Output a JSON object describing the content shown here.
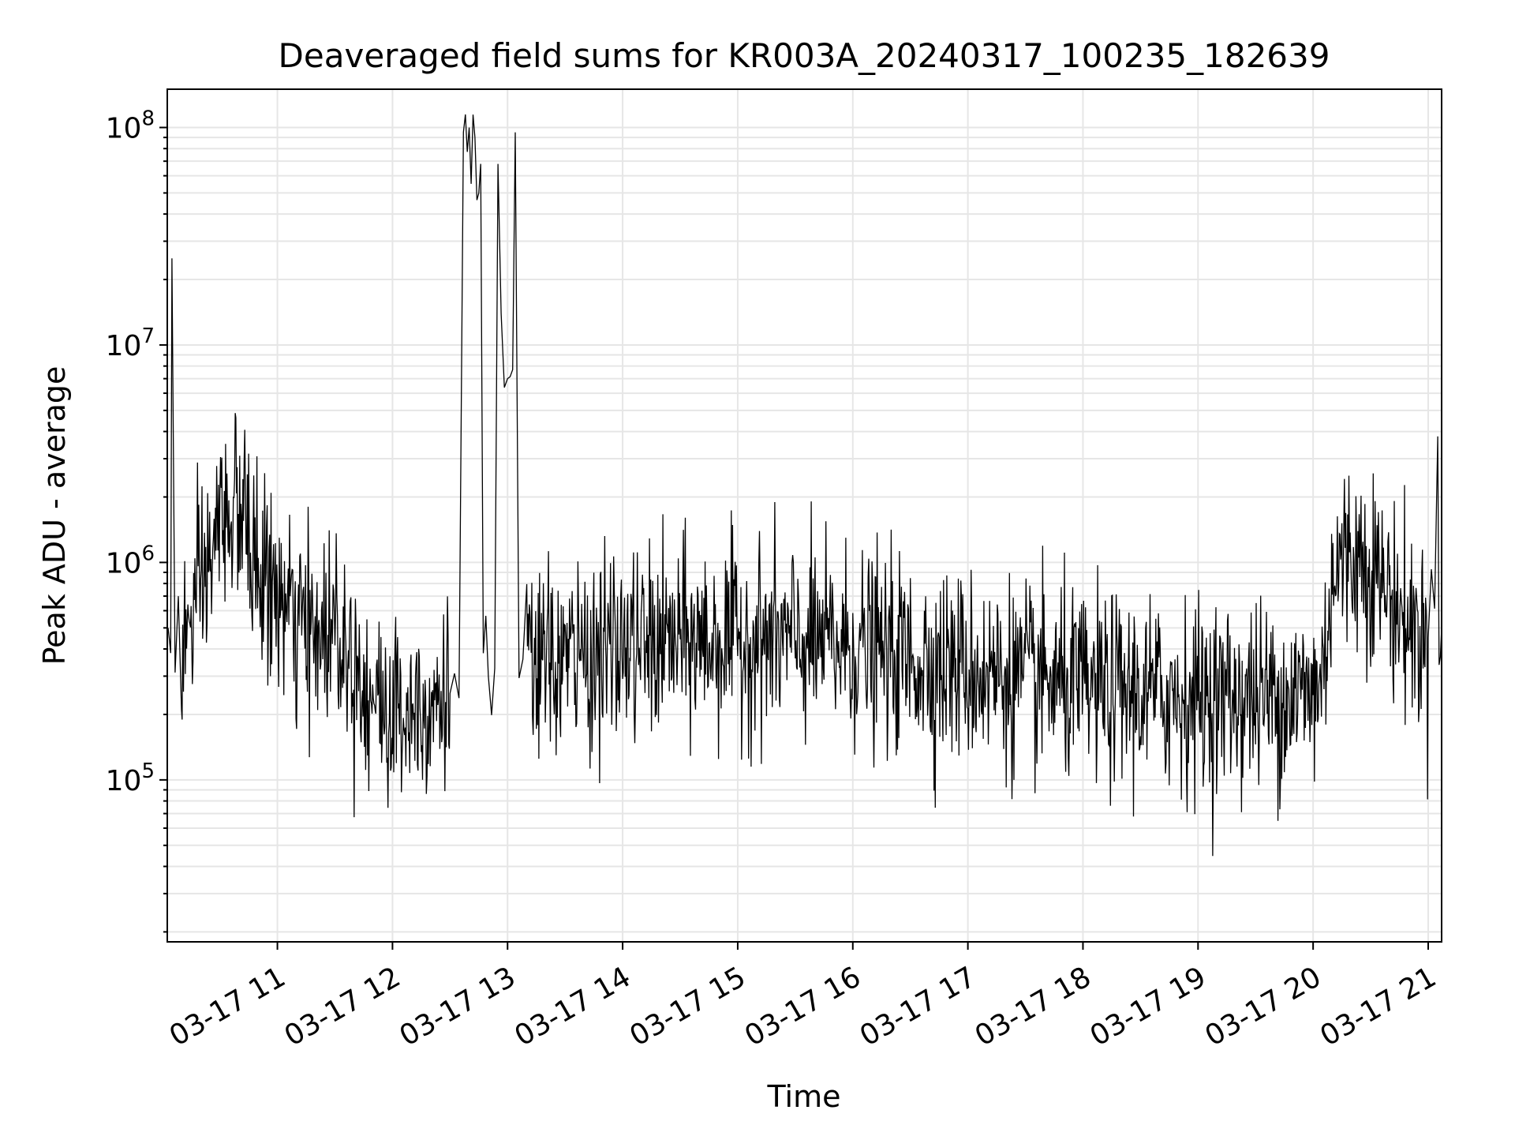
{
  "chart_data": {
    "type": "line",
    "title": "Deaveraged field sums for KR003A_20240317_100235_182639",
    "xlabel": "Time",
    "ylabel": "Peak ADU - average",
    "yscale": "log",
    "ylim": [
      18000,
      150000000
    ],
    "xlim": [
      "03-17 10:02:35",
      "03-17 21:07:00"
    ],
    "grid": true,
    "legend": "none",
    "line_color": "#000000",
    "grid_color": "#e6e6e6",
    "x_ticks": [
      {
        "t": "03-17 11:00",
        "label": "03-17 11"
      },
      {
        "t": "03-17 12:00",
        "label": "03-17 12"
      },
      {
        "t": "03-17 13:00",
        "label": "03-17 13"
      },
      {
        "t": "03-17 14:00",
        "label": "03-17 14"
      },
      {
        "t": "03-17 15:00",
        "label": "03-17 15"
      },
      {
        "t": "03-17 16:00",
        "label": "03-17 16"
      },
      {
        "t": "03-17 17:00",
        "label": "03-17 17"
      },
      {
        "t": "03-17 18:00",
        "label": "03-17 18"
      },
      {
        "t": "03-17 19:00",
        "label": "03-17 19"
      },
      {
        "t": "03-17 20:00",
        "label": "03-17 20"
      },
      {
        "t": "03-17 21:00",
        "label": "03-17 21"
      }
    ],
    "y_ticks": [
      {
        "value": 100000,
        "label": "10",
        "exp": "5"
      },
      {
        "value": 1000000,
        "label": "10",
        "exp": "6"
      },
      {
        "value": 10000000,
        "label": "10",
        "exp": "7"
      },
      {
        "value": 100000000,
        "label": "10",
        "exp": "8"
      }
    ],
    "series": [
      {
        "points": [
          [
            "03-17 10:03",
            500000
          ],
          [
            "03-17 10:05",
            25000000
          ],
          [
            "03-17 10:10",
            400000
          ],
          [
            "03-17 10:20",
            700000
          ],
          [
            "03-17 10:30",
            1500000
          ],
          [
            "03-17 10:35",
            1800000
          ],
          [
            "03-17 10:40",
            1700000
          ],
          [
            "03-17 10:45",
            1300000
          ],
          [
            "03-17 10:50",
            900000
          ],
          [
            "03-17 11:00",
            700000
          ],
          [
            "03-17 11:10",
            500000
          ],
          [
            "03-17 11:20",
            450000
          ],
          [
            "03-17 11:30",
            550000
          ],
          [
            "03-17 11:40",
            350000
          ],
          [
            "03-17 11:50",
            230000
          ],
          [
            "03-17 12:00",
            200000
          ],
          [
            "03-17 12:15",
            230000
          ],
          [
            "03-17 12:30",
            250000
          ],
          [
            "03-17 12:37",
            95000000
          ],
          [
            "03-17 12:40",
            100000000
          ],
          [
            "03-17 12:43",
            90000000
          ],
          [
            "03-17 12:46",
            68000000
          ],
          [
            "03-17 12:50",
            300000
          ],
          [
            "03-17 12:55",
            68000000
          ],
          [
            "03-17 13:00",
            7000000
          ],
          [
            "03-17 13:04",
            95000000
          ],
          [
            "03-17 13:10",
            320000
          ],
          [
            "03-17 13:30",
            360000
          ],
          [
            "03-17 14:00",
            400000
          ],
          [
            "03-17 14:30",
            430000
          ],
          [
            "03-17 15:00",
            440000
          ],
          [
            "03-17 15:30",
            430000
          ],
          [
            "03-17 16:00",
            410000
          ],
          [
            "03-17 16:30",
            360000
          ],
          [
            "03-17 17:00",
            320000
          ],
          [
            "03-17 17:30",
            290000
          ],
          [
            "03-17 18:00",
            260000
          ],
          [
            "03-17 18:30",
            250000
          ],
          [
            "03-17 19:00",
            240000
          ],
          [
            "03-17 19:30",
            240000
          ],
          [
            "03-17 20:00",
            250000
          ],
          [
            "03-17 20:05",
            300000
          ],
          [
            "03-17 20:10",
            900000
          ],
          [
            "03-17 20:20",
            1100000
          ],
          [
            "03-17 20:30",
            1000000
          ],
          [
            "03-17 20:40",
            700000
          ],
          [
            "03-17 20:50",
            500000
          ],
          [
            "03-17 21:00",
            450000
          ],
          [
            "03-17 21:05",
            3800000
          ],
          [
            "03-17 21:07",
            500000
          ]
        ]
      }
    ]
  }
}
